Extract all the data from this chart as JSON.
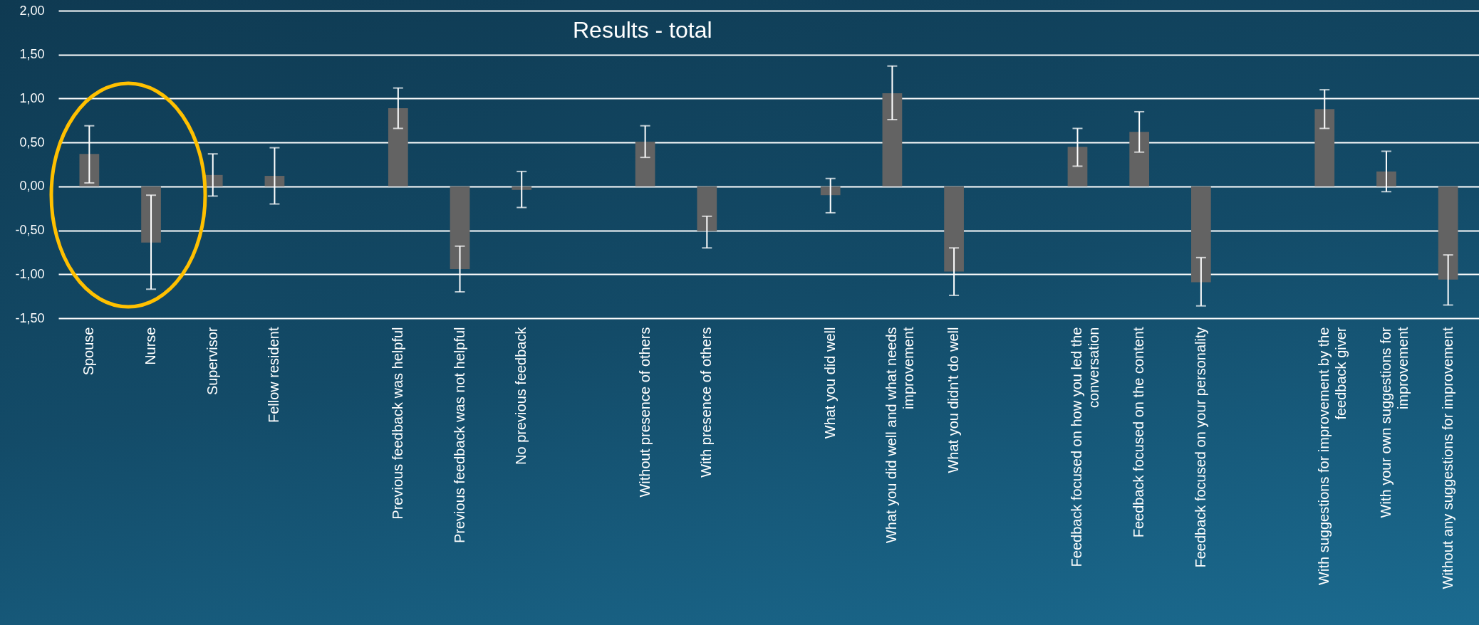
{
  "chart_data": {
    "type": "bar",
    "title": "Results - total",
    "categories": [
      "Spouse",
      "Nurse",
      "Supervisor",
      "Fellow resident",
      null,
      "Previous feedback was helpful",
      "Previous feedback was not helpful",
      "No previous feedback",
      null,
      "Without presence of others",
      "With presence of others",
      null,
      "What you did well",
      "What you did well and what needs improvement",
      "What you didn't do well",
      null,
      "Feedback focused on how you led the conversation",
      "Feedback focused on the content",
      "Feedback focused on your personality",
      null,
      "With suggestions for improvement by the feedback giver",
      "With your own suggestions for improvement",
      "Without any suggestions for improvement"
    ],
    "values": [
      0.37,
      -0.64,
      0.13,
      0.12,
      null,
      0.89,
      -0.94,
      -0.04,
      null,
      0.51,
      -0.51,
      null,
      -0.1,
      1.06,
      -0.97,
      null,
      0.45,
      0.62,
      -1.09,
      null,
      0.88,
      0.17,
      -1.06
    ],
    "errors": [
      [
        0.04,
        0.69
      ],
      [
        -1.17,
        -0.1
      ],
      [
        -0.11,
        0.37
      ],
      [
        -0.2,
        0.44
      ],
      null,
      [
        0.66,
        1.12
      ],
      [
        -1.2,
        -0.68
      ],
      [
        -0.24,
        0.17
      ],
      null,
      [
        0.33,
        0.69
      ],
      [
        -0.7,
        -0.34
      ],
      null,
      [
        -0.3,
        0.09
      ],
      [
        0.76,
        1.37
      ],
      [
        -1.24,
        -0.7
      ],
      null,
      [
        0.23,
        0.66
      ],
      [
        0.39,
        0.85
      ],
      [
        -1.36,
        -0.81
      ],
      null,
      [
        0.66,
        1.1
      ],
      [
        -0.06,
        0.4
      ],
      [
        -1.35,
        -0.78
      ]
    ],
    "color": "#636363",
    "ylim": [
      -1.5,
      2
    ],
    "yticks": [
      {
        "value": -1.5,
        "label": "-1,50"
      },
      {
        "value": -1,
        "label": "-1,00"
      },
      {
        "value": -0.5,
        "label": "-0,50"
      },
      {
        "value": 0,
        "label": "0,00"
      },
      {
        "value": 0.5,
        "label": "0,50"
      },
      {
        "value": 1,
        "label": "1,00"
      },
      {
        "value": 1.5,
        "label": "1,50"
      },
      {
        "value": 2,
        "label": "2,00"
      }
    ],
    "grid": "y"
  }
}
